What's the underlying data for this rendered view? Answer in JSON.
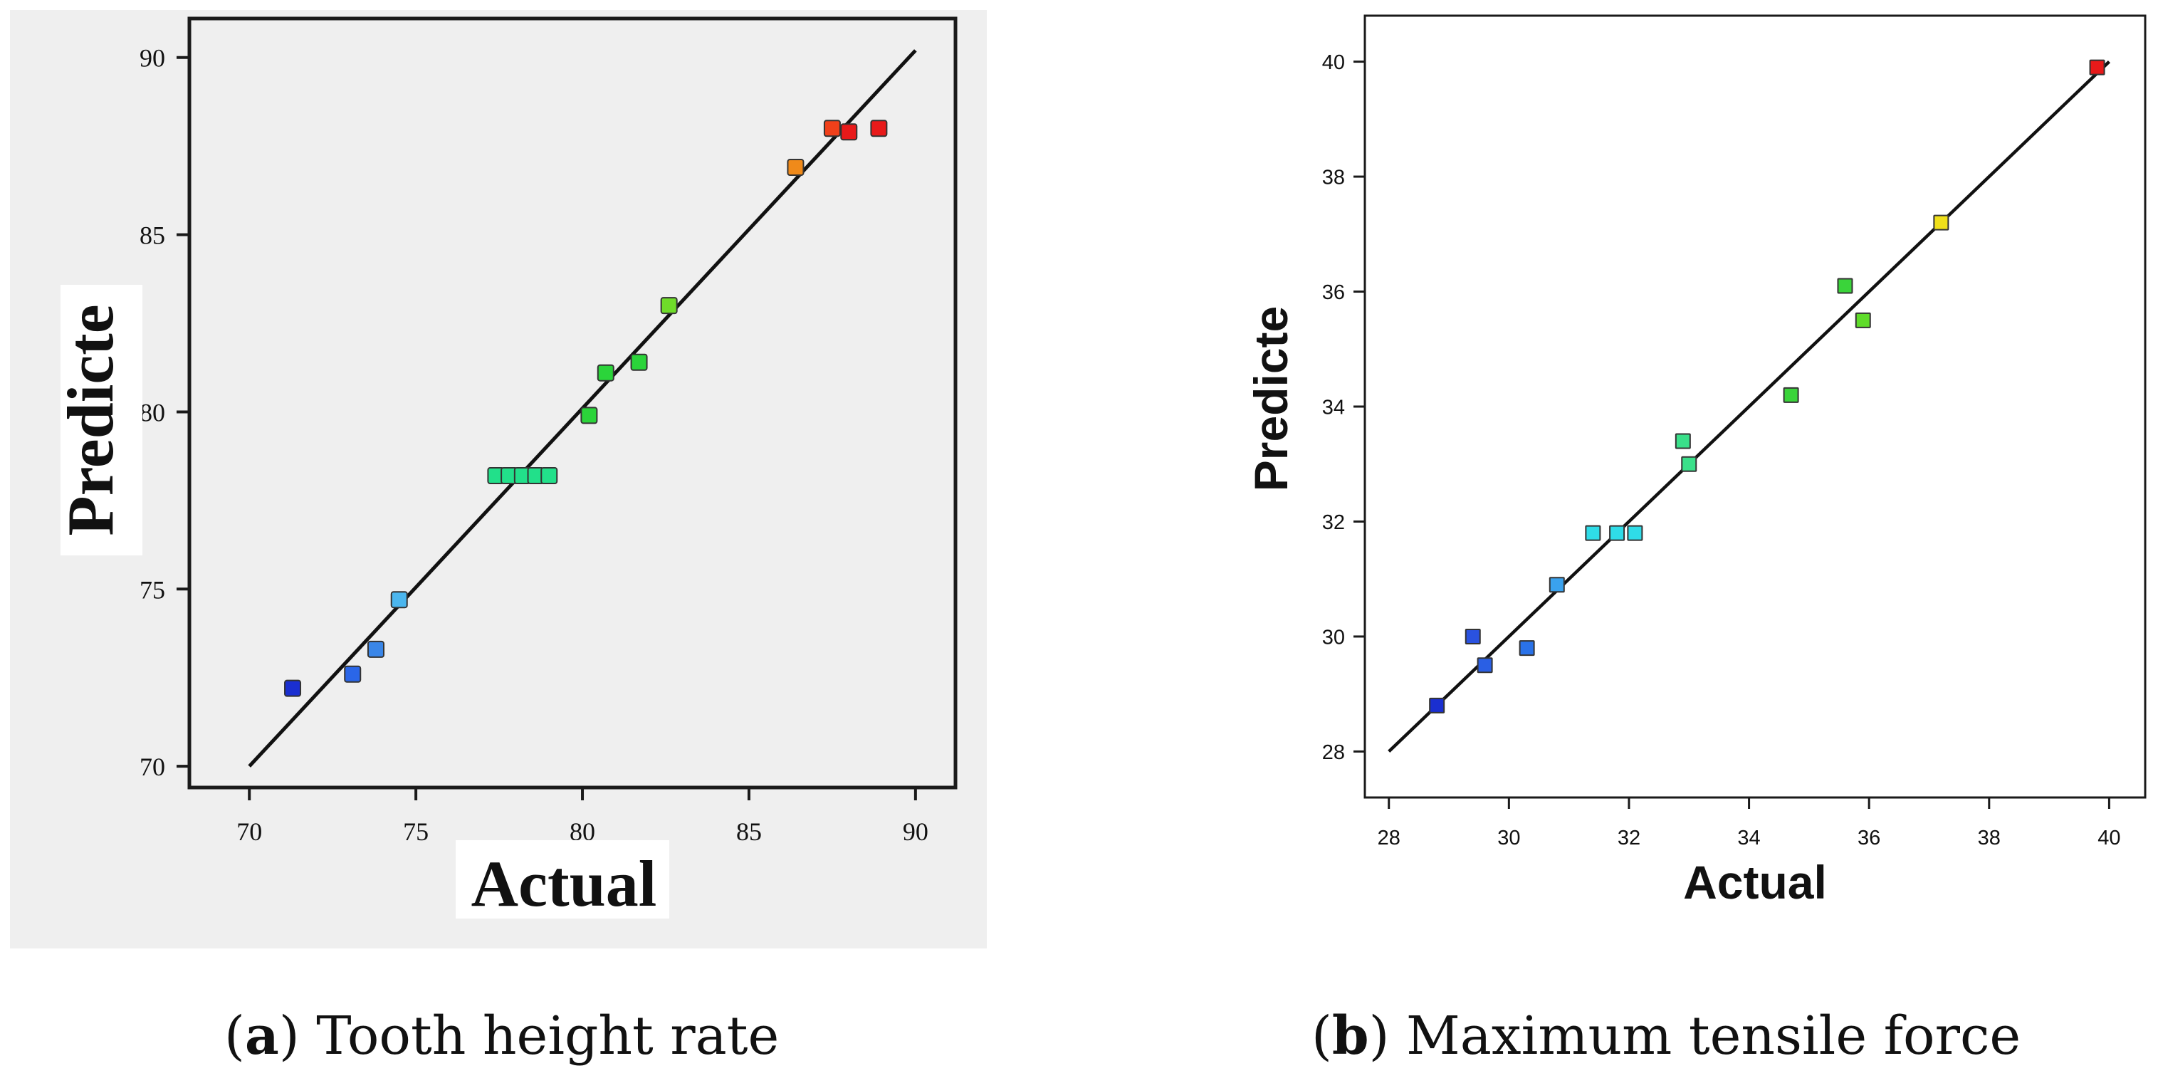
{
  "charts": [
    {
      "id": "a",
      "caption_letter": "a",
      "caption_text": "Tooth height rate",
      "chart_data": {
        "type": "scatter",
        "title": "",
        "xlabel": "Actual",
        "ylabel": "Predicte",
        "xlim": [
          68.2,
          91.2
        ],
        "ylim": [
          69.4,
          91.1
        ],
        "xticks": [
          "70",
          "75",
          "80",
          "85",
          "90"
        ],
        "yticks": [
          "70",
          "75",
          "80",
          "85",
          "90"
        ],
        "xtick_values": [
          70,
          75,
          80,
          85,
          90
        ],
        "ytick_values": [
          70,
          75,
          80,
          85,
          90
        ],
        "reference_line": [
          [
            70,
            70
          ],
          [
            90,
            90.2
          ]
        ],
        "grid": false,
        "background": "#efefef",
        "points": [
          {
            "x": 71.3,
            "y": 72.2,
            "color": "#1a2fd0"
          },
          {
            "x": 73.1,
            "y": 72.6,
            "color": "#2a66e8"
          },
          {
            "x": 73.8,
            "y": 73.3,
            "color": "#3a86e8"
          },
          {
            "x": 74.5,
            "y": 74.7,
            "color": "#4bb6ee"
          },
          {
            "x": 77.4,
            "y": 78.2,
            "color": "#22e08a"
          },
          {
            "x": 77.8,
            "y": 78.2,
            "color": "#22e08a"
          },
          {
            "x": 78.2,
            "y": 78.2,
            "color": "#22e08a"
          },
          {
            "x": 78.6,
            "y": 78.2,
            "color": "#22e08a"
          },
          {
            "x": 79.0,
            "y": 78.2,
            "color": "#22e08a"
          },
          {
            "x": 80.2,
            "y": 79.9,
            "color": "#2bd43a"
          },
          {
            "x": 80.7,
            "y": 81.1,
            "color": "#2bd43a"
          },
          {
            "x": 81.7,
            "y": 81.4,
            "color": "#2bd43a"
          },
          {
            "x": 82.6,
            "y": 83.0,
            "color": "#6fdc2a"
          },
          {
            "x": 86.4,
            "y": 86.9,
            "color": "#f08a1a"
          },
          {
            "x": 87.5,
            "y": 88.0,
            "color": "#f0401a"
          },
          {
            "x": 88.0,
            "y": 87.9,
            "color": "#e81a1a"
          },
          {
            "x": 88.9,
            "y": 88.0,
            "color": "#e81a1a"
          }
        ]
      }
    },
    {
      "id": "b",
      "caption_letter": "b",
      "caption_text": "Maximum tensile force",
      "chart_data": {
        "type": "scatter",
        "title": "",
        "xlabel": "Actual",
        "ylabel": "Predicte",
        "xlim": [
          27.6,
          40.6
        ],
        "ylim": [
          27.2,
          40.8
        ],
        "xticks": [
          "28",
          "30",
          "32",
          "34",
          "36",
          "38",
          "40"
        ],
        "yticks": [
          "28",
          "30",
          "32",
          "34",
          "36",
          "38",
          "40"
        ],
        "xtick_values": [
          28,
          30,
          32,
          34,
          36,
          38,
          40
        ],
        "ytick_values": [
          28,
          30,
          32,
          34,
          36,
          38,
          40
        ],
        "reference_line": [
          [
            28,
            28
          ],
          [
            40,
            40
          ]
        ],
        "grid": false,
        "background": "#ffffff",
        "points": [
          {
            "x": 28.8,
            "y": 28.8,
            "color": "#1a2fd0"
          },
          {
            "x": 29.4,
            "y": 30.0,
            "color": "#2a52e0"
          },
          {
            "x": 29.6,
            "y": 29.5,
            "color": "#2a5fe4"
          },
          {
            "x": 30.3,
            "y": 29.8,
            "color": "#2a72e8"
          },
          {
            "x": 30.8,
            "y": 30.9,
            "color": "#3aa2ee"
          },
          {
            "x": 31.4,
            "y": 31.8,
            "color": "#2fdce8"
          },
          {
            "x": 31.8,
            "y": 31.8,
            "color": "#2fdce8"
          },
          {
            "x": 32.1,
            "y": 31.8,
            "color": "#2fdce8"
          },
          {
            "x": 32.9,
            "y": 33.4,
            "color": "#3ae08a"
          },
          {
            "x": 33.0,
            "y": 33.0,
            "color": "#3ae08a"
          },
          {
            "x": 34.7,
            "y": 34.2,
            "color": "#3ad43a"
          },
          {
            "x": 35.6,
            "y": 36.1,
            "color": "#3ad43a"
          },
          {
            "x": 35.9,
            "y": 35.5,
            "color": "#5fdc2a"
          },
          {
            "x": 37.2,
            "y": 37.2,
            "color": "#f0e01a"
          },
          {
            "x": 39.8,
            "y": 39.9,
            "color": "#e81a1a"
          }
        ]
      }
    }
  ]
}
